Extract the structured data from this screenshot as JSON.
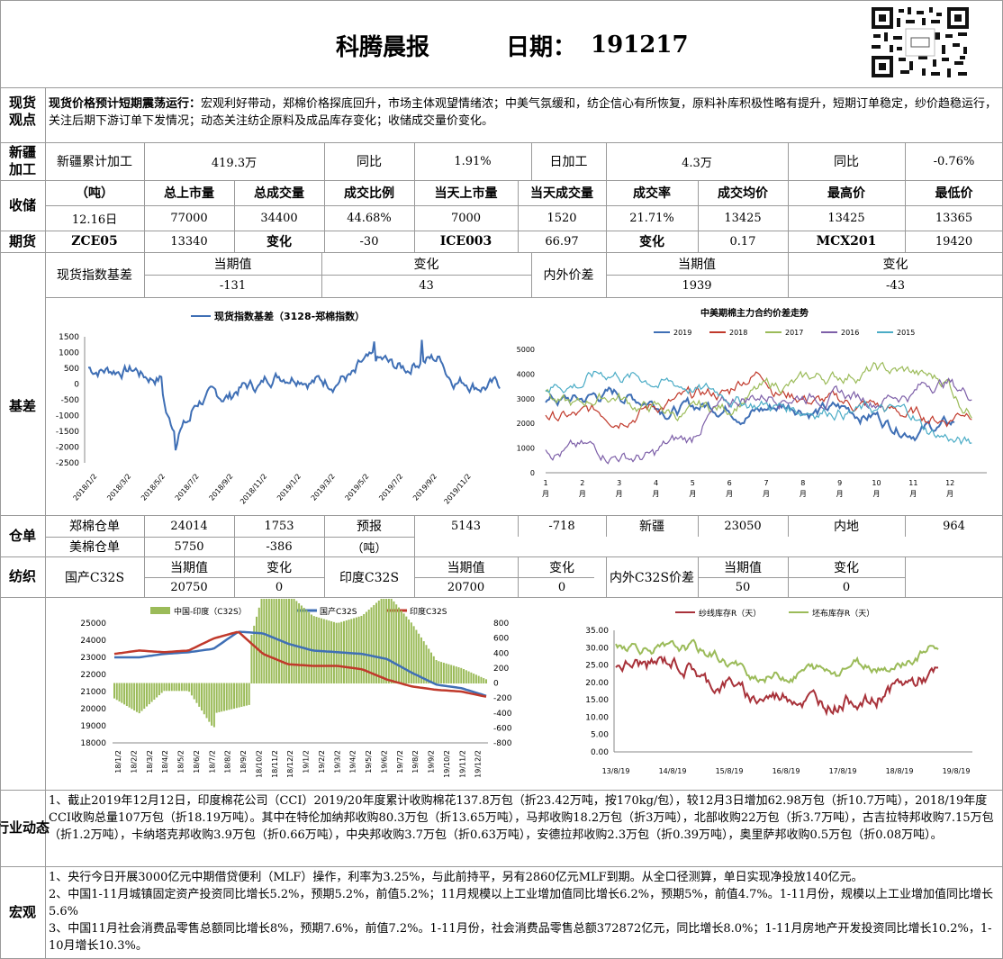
{
  "header": {
    "title": "科腾晨报",
    "date_label": "日期：",
    "date": "191217"
  },
  "spot": {
    "label": "现货观点",
    "headline": "现货价格预计短期震荡运行：",
    "text": "宏观利好带动，郑棉价格探底回升，市场主体观望情绪浓；中美气氛缓和，纺企信心有所恢复，原料补库积极性略有提升，短期订单稳定，纱价趋稳运行，关注后期下游订单下发情况；动态关注纺企原料及成品库存变化；收储成交量价变化。"
  },
  "xinjiang": {
    "label": "新疆加工",
    "cum_label": "新疆累计加工",
    "cum_value": "419.3万",
    "yoy_label": "同比",
    "yoy_value": "1.91%",
    "daily_label": "日加工",
    "daily_value": "4.3万",
    "yoy2_label": "同比",
    "yoy2_value": "-0.76%"
  },
  "storage": {
    "label": "收储",
    "headers": [
      "（吨）",
      "总上市量",
      "总成交量",
      "成交比例",
      "当天上市量",
      "当天成交量",
      "成交率",
      "成交均价",
      "最高价",
      "最低价"
    ],
    "row": [
      "12.16日",
      "77000",
      "34400",
      "44.68%",
      "7000",
      "1520",
      "21.71%",
      "13425",
      "13425",
      "13365"
    ]
  },
  "futures": {
    "label": "期货",
    "cells": [
      "ZCE05",
      "13340",
      "变化",
      "-30",
      "ICE003",
      "66.97",
      "变化",
      "0.17",
      "MCX201",
      "19420"
    ]
  },
  "basis_row": {
    "spot_label": "现货指数基差",
    "cur_label": "当期值",
    "chg_label": "变化",
    "cur_value": "-131",
    "chg_value": "43",
    "inout_label": "内外价差",
    "cur2_label": "当期值",
    "chg2_label": "变化",
    "cur2_value": "1939",
    "chg2_value": "-43"
  },
  "basis_section": {
    "label": "基差"
  },
  "chart1": {
    "title": "现货指数基差（3128-郑棉指数）",
    "ytick_labels": [
      "1500",
      "1000",
      "500",
      "0",
      "-500",
      "-1000",
      "-1500",
      "-2000",
      "-2500"
    ],
    "xtick_labels": [
      "2018/1/2",
      "2018/3/2",
      "2018/5/2",
      "2018/7/2",
      "2018/9/2",
      "2018/11/2",
      "2019/1/2",
      "2019/3/2",
      "2019/5/2",
      "2019/7/2",
      "2019/9/2",
      "2019/11/2"
    ],
    "color": "#3f6fb5"
  },
  "chart2": {
    "title": "中美期棉主力合约价差走势",
    "ytick_labels": [
      "5000",
      "4000",
      "3000",
      "2000",
      "1000",
      "0"
    ],
    "xtick_labels": [
      "1",
      "2",
      "3",
      "4",
      "5",
      "6",
      "7",
      "8",
      "9",
      "10",
      "11",
      "12"
    ],
    "xtick_unit": "月",
    "legend": [
      "2019",
      "2018",
      "2017",
      "2016",
      "2015"
    ],
    "colors": [
      "#3f6fb5",
      "#c0392b",
      "#9bbb59",
      "#7d5fa8",
      "#4bacc6"
    ]
  },
  "warehouse": {
    "label": "仓单",
    "zheng_label": "郑棉仓单",
    "zheng_value": "24014",
    "zheng_change": "1753",
    "forecast_label": "预报",
    "unit_label": "（吨）",
    "forecast_value": "5143",
    "forecast_change": "-718",
    "xj_label": "新疆",
    "xj_value": "23050",
    "inland_label": "内地",
    "inland_value": "964",
    "us_label": "美棉仓单",
    "us_value": "5750",
    "us_change": "-386"
  },
  "textile": {
    "label": "纺织",
    "cn_label": "国产C32S",
    "cur_label": "当期值",
    "chg_label": "变化",
    "cn_value": "20750",
    "cn_change": "0",
    "in_label": "印度C32S",
    "cur2_label": "当期值",
    "chg2_label": "变化",
    "in_value": "20700",
    "in_change": "0",
    "diff_label": "内外C32S价差",
    "cur3_label": "当期值",
    "chg3_label": "变化",
    "diff_value": "50",
    "diff_change": "0"
  },
  "chart3": {
    "legend": [
      "中国-印度（C32S）",
      "国产C32S",
      "印度C32S"
    ],
    "colors": [
      "#9bbb59",
      "#3f6fb5",
      "#c0392b"
    ],
    "ytick_left": [
      "25000",
      "24000",
      "23000",
      "22000",
      "21000",
      "20000",
      "19000",
      "18000"
    ],
    "ytick_right": [
      "800",
      "600",
      "400",
      "200",
      "0",
      "-200",
      "-400",
      "-600",
      "-800"
    ],
    "xtick_labels": [
      "18/1/2",
      "18/2/2",
      "18/3/2",
      "18/4/2",
      "18/5/2",
      "18/6/2",
      "18/7/2",
      "18/8/2",
      "18/9/2",
      "18/10/2",
      "18/11/2",
      "18/12/2",
      "19/1/2",
      "19/2/2",
      "19/3/2",
      "19/4/2",
      "19/5/2",
      "19/6/2",
      "19/7/2",
      "19/8/2",
      "19/9/2",
      "19/10/2",
      "19/11/2",
      "19/12/2"
    ]
  },
  "chart4": {
    "legend": [
      "纱线库存R（天）",
      "坯布库存R（天）"
    ],
    "colors": [
      "#a8323a",
      "#9bbb59"
    ],
    "ytick_labels": [
      "35.00",
      "30.00",
      "25.00",
      "20.00",
      "15.00",
      "10.00",
      "5.00",
      "0.00"
    ],
    "xtick_labels": [
      "13/8/19",
      "14/8/19",
      "15/8/19",
      "16/8/19",
      "17/8/19",
      "18/8/19",
      "19/8/19"
    ]
  },
  "industry": {
    "label": "行业动态",
    "text": "1、截止2019年12月12日，印度棉花公司（CCI）2019/20年度累计收购棉花137.8万包（折23.42万吨，按170kg/包），较12月3日增加62.98万包（折10.7万吨），2018/19年度CCI收购总量107万包（折18.19万吨）。其中在特伦加纳邦收购80.3万包（折13.65万吨），马邦收购18.2万包（折3万吨），北部收购22万包（折3.7万吨），古吉拉特邦收购7.15万包（折1.2万吨），卡纳塔克邦收购3.9万包（折0.66万吨），中央邦收购3.7万包（折0.63万吨），安德拉邦收购2.3万包（折0.39万吨），奥里萨邦收购0.5万包（折0.08万吨）。"
  },
  "macro": {
    "label": "宏观",
    "items": [
      "1、央行今日开展3000亿元中期借贷便利（MLF）操作，利率为3.25%，与此前持平，另有2860亿元MLF到期。从全口径测算，单日实现净投放140亿元。",
      "2、中国1-11月城镇固定资产投资同比增长5.2%，预期5.2%，前值5.2%；11月规模以上工业增加值同比增长6.2%，预期5%，前值4.7%。1-11月份，规模以上工业增加值同比增长5.6%",
      "3、中国11月社会消费品零售总额同比增长8%，预期7.6%，前值7.2%。1-11月份，社会消费品零售总额372872亿元，同比增长8.0%；1-11月房地产开发投资同比增长10.2%，1-10月增长10.3%。"
    ]
  }
}
